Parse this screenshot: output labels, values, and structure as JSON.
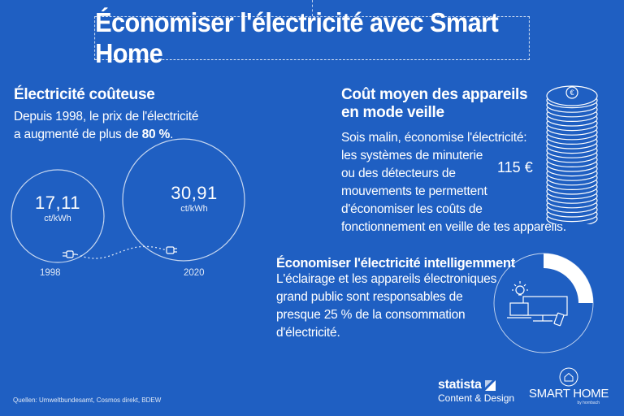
{
  "title": "Économiser l'électricité avec Smart Home",
  "expensive": {
    "heading": "Électricité coûteuse",
    "line1": "Depuis 1998, le prix de l'électricité",
    "line2_prefix": "a augmenté de plus de ",
    "line2_bold": "80 %",
    "line2_suffix": "."
  },
  "prices": [
    {
      "value": "17,11",
      "unit": "ct/kWh",
      "year": "1998"
    },
    {
      "value": "30,91",
      "unit": "ct/kWh",
      "year": "2020"
    }
  ],
  "standby": {
    "heading_line1": "Coût moyen des appareils",
    "heading_line2": "en mode veille",
    "body": [
      "Sois malin, économise l'électricité:",
      "les systèmes de minuterie",
      "ou des détecteurs de",
      "mouvements te permettent",
      "d'économiser les coûts de",
      "fonctionnement en veille de tes appareils."
    ],
    "cost": "115 €",
    "coin_symbol": "€"
  },
  "smart": {
    "heading": "Économiser l'électricité intelligemment",
    "body": [
      "L'éclairage et les appareils électroniques",
      "grand public sont responsables de",
      "presque 25 % de la consommation",
      "d'électricité."
    ],
    "share_percent": 25
  },
  "sources": "Quellen: Umweltbundesamt, Cosmos direkt, BDEW",
  "logos": {
    "statista_name": "statista",
    "statista_sub": "Content & Design",
    "smarthome_name": "SMART HOME",
    "smarthome_by": "by hornbach"
  },
  "colors": {
    "background": "#1f5fc2",
    "foreground": "#ffffff"
  }
}
